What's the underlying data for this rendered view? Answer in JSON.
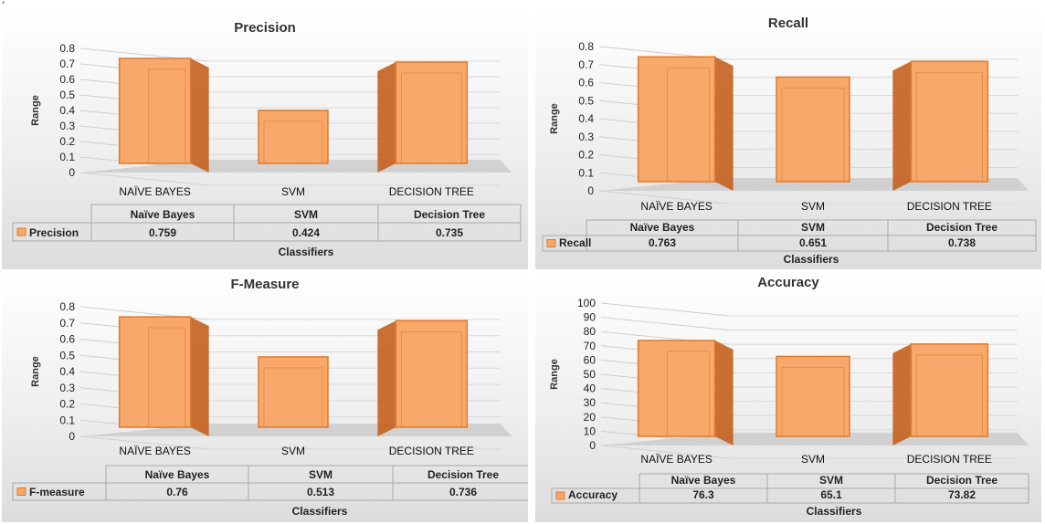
{
  "page": {
    "corner_mark": "*"
  },
  "colors": {
    "bar_front": "#f7a86a",
    "bar_side": "#c4601f",
    "bar_edge": "#e07a2c",
    "floor": "#c8c8c8",
    "table_border": "#a9a9a9"
  },
  "chart_data": [
    {
      "type": "bar",
      "title": "Precision",
      "ylabel": "Range",
      "xlabel": "Classifiers",
      "categories": [
        "NAÏVE BAYES",
        "SVM",
        "DECISION TREE"
      ],
      "ylim": [
        0,
        0.8
      ],
      "yticks": [
        "0",
        "0.1",
        "0.2",
        "0.3",
        "0.4",
        "0.5",
        "0.6",
        "0.7",
        "0.8"
      ],
      "series": [
        {
          "name": "Precision",
          "values": [
            0.759,
            0.424,
            0.735
          ]
        }
      ],
      "table": {
        "headers": [
          "Naïve Bayes",
          "SVM",
          "Decision Tree"
        ],
        "row_label": "Precision",
        "cells": [
          "0.759",
          "0.424",
          "0.735"
        ]
      }
    },
    {
      "type": "bar",
      "title": "Recall",
      "ylabel": "Range",
      "xlabel": "Classifiers",
      "categories": [
        "NAÏVE BAYES",
        "SVM",
        "DECISION TREE"
      ],
      "ylim": [
        0,
        0.8
      ],
      "yticks": [
        "0",
        "0.1",
        "0.2",
        "0.3",
        "0.4",
        "0.5",
        "0.6",
        "0.7",
        "0.8"
      ],
      "series": [
        {
          "name": "Recall",
          "values": [
            0.763,
            0.651,
            0.738
          ]
        }
      ],
      "table": {
        "headers": [
          "Naïve Bayes",
          "SVM",
          "Decision Tree"
        ],
        "row_label": "Recall",
        "cells": [
          "0.763",
          "0.651",
          "0.738"
        ]
      }
    },
    {
      "type": "bar",
      "title": "F-Measure",
      "ylabel": "Range",
      "xlabel": "Classifiers",
      "categories": [
        "NAÏVE BAYES",
        "SVM",
        "DECISION TREE"
      ],
      "ylim": [
        0,
        0.8
      ],
      "yticks": [
        "0",
        "0.1",
        "0.2",
        "0.3",
        "0.4",
        "0.5",
        "0.6",
        "0.7",
        "0.8"
      ],
      "series": [
        {
          "name": "F-measure",
          "values": [
            0.76,
            0.513,
            0.736
          ]
        }
      ],
      "table": {
        "headers": [
          "Naïve Bayes",
          "SVM",
          "Decision Tree"
        ],
        "row_label": "F-measure",
        "cells": [
          "0.76",
          "0.513",
          "0.736"
        ]
      }
    },
    {
      "type": "bar",
      "title": "Accuracy",
      "ylabel": "Range",
      "xlabel": "Classifiers",
      "categories": [
        "NAÏVE BAYES",
        "SVM",
        "DECISION TREE"
      ],
      "ylim": [
        0,
        100
      ],
      "yticks": [
        "0",
        "10",
        "20",
        "30",
        "40",
        "50",
        "60",
        "70",
        "80",
        "90",
        "100"
      ],
      "series": [
        {
          "name": "Accuracy",
          "values": [
            76.3,
            65.1,
            73.82
          ]
        }
      ],
      "table": {
        "headers": [
          "Naïve Bayes",
          "SVM",
          "Decision Tree"
        ],
        "row_label": "Accuracy",
        "cells": [
          "76.3",
          "65.1",
          "73.82"
        ]
      }
    }
  ]
}
